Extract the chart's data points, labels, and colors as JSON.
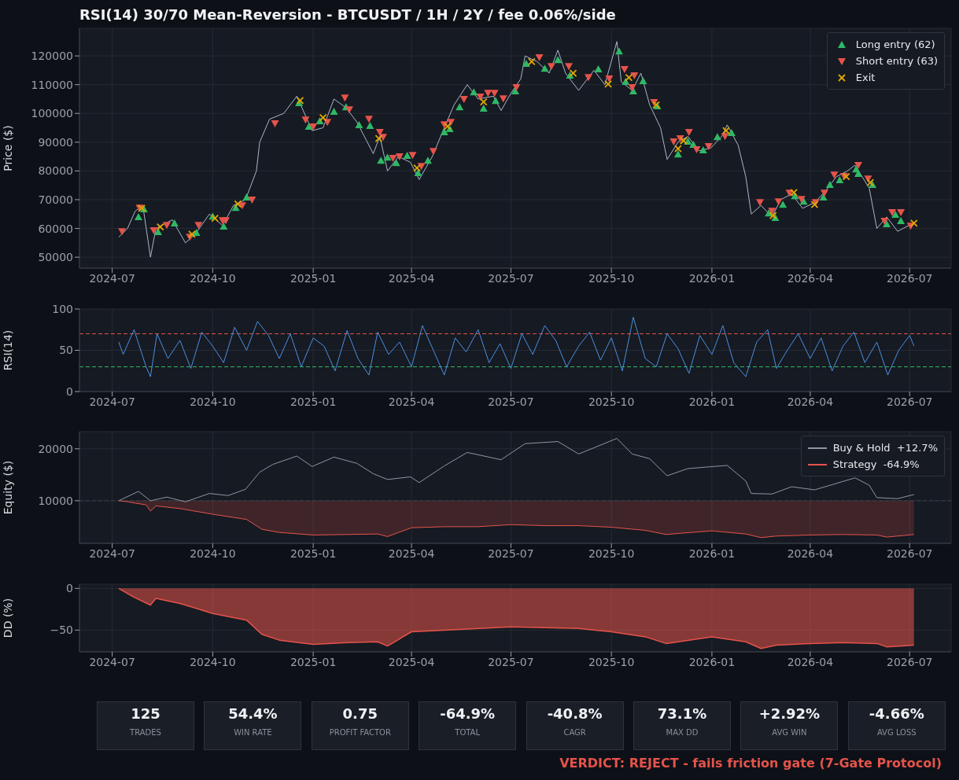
{
  "chart_data": [
    {
      "type": "line",
      "title": "RSI(14) 30/70 Mean-Reversion - BTCUSDT / 1H / 2Y / fee 0.06%/side",
      "ylabel": "Price ($)",
      "xlim": [
        "2024-06-01",
        "2026-08-08"
      ],
      "xticks": [
        {
          "value": "2024-07-01",
          "label": "2024-07"
        },
        {
          "value": "2024-10-01",
          "label": "2024-10"
        },
        {
          "value": "2025-01-01",
          "label": "2025-01"
        },
        {
          "value": "2025-04-01",
          "label": "2025-04"
        },
        {
          "value": "2025-07-01",
          "label": "2025-07"
        },
        {
          "value": "2025-10-01",
          "label": "2025-10"
        },
        {
          "value": "2026-01-01",
          "label": "2026-01"
        },
        {
          "value": "2026-04-01",
          "label": "2026-04"
        },
        {
          "value": "2026-07-01",
          "label": "2026-07"
        }
      ],
      "ylim": [
        46200,
        129600
      ],
      "yticks": [
        50000,
        60000,
        70000,
        80000,
        90000,
        100000,
        110000,
        120000
      ],
      "grid": true,
      "legend": "top right",
      "series": [
        {
          "type": "line",
          "color": "#a9b8cc",
          "x": [
            "2024-07-07",
            "2024-07-15",
            "2024-07-22",
            "2024-07-29",
            "2024-08-05",
            "2024-08-10",
            "2024-08-25",
            "2024-09-06",
            "2024-09-15",
            "2024-09-28",
            "2024-10-10",
            "2024-10-20",
            "2024-10-31",
            "2024-11-10",
            "2024-11-13",
            "2024-11-22",
            "2024-12-05",
            "2024-12-17",
            "2024-12-31",
            "2025-01-10",
            "2025-01-20",
            "2025-01-31",
            "2025-02-10",
            "2025-02-25",
            "2025-03-03",
            "2025-03-10",
            "2025-03-20",
            "2025-03-31",
            "2025-04-08",
            "2025-04-20",
            "2025-05-01",
            "2025-05-10",
            "2025-05-22",
            "2025-06-01",
            "2025-06-15",
            "2025-06-22",
            "2025-07-01",
            "2025-07-10",
            "2025-07-14",
            "2025-07-25",
            "2025-08-05",
            "2025-08-13",
            "2025-08-20",
            "2025-09-01",
            "2025-09-15",
            "2025-09-25",
            "2025-10-06",
            "2025-10-10",
            "2025-10-20",
            "2025-10-28",
            "2025-11-05",
            "2025-11-15",
            "2025-11-21",
            "2025-12-01",
            "2025-12-10",
            "2025-12-20",
            "2025-12-31",
            "2026-01-10",
            "2026-01-15",
            "2026-01-25",
            "2026-02-01",
            "2026-02-06",
            "2026-02-15",
            "2026-02-25",
            "2026-03-05",
            "2026-03-15",
            "2026-03-25",
            "2026-04-05",
            "2026-04-15",
            "2026-04-25",
            "2026-05-05",
            "2026-05-12",
            "2026-05-25",
            "2026-06-01",
            "2026-06-10",
            "2026-06-20",
            "2026-07-05"
          ],
          "values": [
            57000,
            60000,
            66000,
            68000,
            50000,
            60000,
            63000,
            55000,
            58000,
            65000,
            61000,
            68000,
            70000,
            80000,
            90000,
            98000,
            100000,
            106000,
            94000,
            95000,
            105000,
            102000,
            97000,
            86000,
            92000,
            80000,
            85000,
            83000,
            77000,
            85000,
            95000,
            103000,
            110000,
            105000,
            106000,
            101000,
            107000,
            112000,
            120000,
            118000,
            114000,
            122000,
            114000,
            108000,
            115000,
            110000,
            125000,
            111000,
            108000,
            114000,
            103000,
            95000,
            84000,
            90000,
            92000,
            87000,
            88000,
            92000,
            96000,
            89000,
            78000,
            65000,
            68000,
            64000,
            70000,
            72000,
            67000,
            69000,
            73000,
            78000,
            80000,
            82000,
            74000,
            60000,
            64000,
            59000,
            62000
          ]
        },
        {
          "type": "scatter",
          "name": "Long entry (62)",
          "color": "#2fb866",
          "marker": "triangle",
          "x": [
            "2024-07-25",
            "2024-07-30",
            "2024-08-12",
            "2024-08-27",
            "2024-09-16",
            "2024-10-01",
            "2024-10-11",
            "2024-10-22",
            "2024-11-01",
            "2024-12-19",
            "2024-12-28",
            "2025-01-07",
            "2025-01-20",
            "2025-01-31",
            "2025-02-12",
            "2025-02-22",
            "2025-03-04",
            "2025-03-10",
            "2025-03-18",
            "2025-03-28",
            "2025-04-07",
            "2025-04-16",
            "2025-05-01",
            "2025-05-06",
            "2025-05-15",
            "2025-05-28",
            "2025-06-06",
            "2025-06-17",
            "2025-07-05",
            "2025-07-15",
            "2025-08-01",
            "2025-08-13",
            "2025-08-24",
            "2025-09-19",
            "2025-10-08",
            "2025-10-14",
            "2025-10-21",
            "2025-10-30",
            "2025-11-12",
            "2025-12-01",
            "2025-12-10",
            "2025-12-15",
            "2025-12-24",
            "2026-01-06",
            "2026-01-19",
            "2026-02-22",
            "2026-02-28",
            "2026-03-07",
            "2026-03-18",
            "2026-03-26",
            "2026-04-13",
            "2026-04-19",
            "2026-04-28",
            "2026-05-13",
            "2026-05-15",
            "2026-05-28",
            "2026-06-10",
            "2026-06-18",
            "2026-06-23"
          ],
          "values": [
            64000,
            66700,
            58800,
            61800,
            58500,
            64200,
            60700,
            67200,
            70800,
            103600,
            95400,
            97300,
            100600,
            102200,
            96000,
            95700,
            83600,
            84700,
            82800,
            85300,
            79300,
            83600,
            93500,
            94600,
            102200,
            107400,
            101700,
            104400,
            107700,
            117300,
            115600,
            118600,
            113200,
            115400,
            121600,
            111000,
            107700,
            111300,
            102500,
            85800,
            90200,
            89100,
            87200,
            91800,
            93200,
            65300,
            63700,
            68300,
            71300,
            69400,
            70800,
            75200,
            76800,
            80600,
            79000,
            75200,
            61500,
            64800,
            62600
          ]
        },
        {
          "type": "scatter",
          "name": "Short entry (63)",
          "color": "#e5534b",
          "marker": "triangle-down",
          "x": [
            "2024-07-10",
            "2024-07-26",
            "2024-08-08",
            "2024-08-20",
            "2024-09-10",
            "2024-09-18",
            "2024-10-10",
            "2024-10-13",
            "2024-10-28",
            "2024-11-06",
            "2024-11-27",
            "2024-12-25",
            "2025-01-01",
            "2025-01-14",
            "2025-01-30",
            "2025-02-03",
            "2025-02-21",
            "2025-03-03",
            "2025-03-06",
            "2025-03-15",
            "2025-03-21",
            "2025-04-02",
            "2025-04-10",
            "2025-04-21",
            "2025-05-01",
            "2025-05-07",
            "2025-05-19",
            "2025-06-03",
            "2025-06-10",
            "2025-06-16",
            "2025-06-24",
            "2025-07-06",
            "2025-07-27",
            "2025-08-07",
            "2025-08-23",
            "2025-09-10",
            "2025-09-29",
            "2025-10-13",
            "2025-10-20",
            "2025-10-22",
            "2025-11-09",
            "2025-11-27",
            "2025-12-03",
            "2025-12-11",
            "2025-12-18",
            "2025-12-29",
            "2026-01-13",
            "2026-02-14",
            "2026-02-25",
            "2026-03-03",
            "2026-03-13",
            "2026-03-24",
            "2026-04-06",
            "2026-04-14",
            "2026-04-23",
            "2026-05-02",
            "2026-05-15",
            "2026-05-24",
            "2026-06-08",
            "2026-06-15",
            "2026-06-23",
            "2026-07-02"
          ],
          "values": [
            59000,
            67200,
            59300,
            61200,
            57100,
            61200,
            62800,
            62800,
            68000,
            70000,
            96500,
            97800,
            95400,
            97000,
            105500,
            101400,
            98100,
            93500,
            91800,
            84500,
            85000,
            85500,
            81700,
            86900,
            96200,
            97000,
            105000,
            105800,
            107100,
            107100,
            105200,
            109100,
            119500,
            116400,
            116400,
            112600,
            112100,
            115400,
            109100,
            113200,
            103900,
            90200,
            91300,
            93500,
            87500,
            88600,
            92100,
            69100,
            66100,
            69400,
            72400,
            70200,
            69100,
            72400,
            78700,
            78200,
            82000,
            77300,
            62600,
            65600,
            65600,
            60900
          ]
        },
        {
          "type": "scatter",
          "name": "Exit",
          "color": "#e0a800",
          "marker": "cross",
          "x": [
            "2024-07-28",
            "2024-08-14",
            "2024-09-12",
            "2024-10-03",
            "2024-10-24",
            "2024-12-20",
            "2025-01-10",
            "2025-03-02",
            "2025-04-06",
            "2025-05-04",
            "2025-06-06",
            "2025-07-20",
            "2025-08-27",
            "2025-09-28",
            "2025-10-17",
            "2025-11-11",
            "2025-12-01",
            "2025-12-06",
            "2026-01-14",
            "2026-02-26",
            "2026-03-17",
            "2026-04-05",
            "2026-05-04",
            "2026-05-26",
            "2026-07-05"
          ],
          "values": [
            67000,
            60500,
            58000,
            63500,
            68500,
            104500,
            98500,
            91300,
            81000,
            95500,
            104000,
            118000,
            114000,
            110200,
            112500,
            103000,
            87700,
            90500,
            94000,
            64500,
            72500,
            68300,
            78000,
            76000,
            61800
          ]
        }
      ]
    },
    {
      "type": "line",
      "ylabel": "RSI(14)",
      "xlim": [
        "2024-06-01",
        "2026-08-08"
      ],
      "xticks": [
        {
          "value": "2024-07-01",
          "label": "2024-07"
        },
        {
          "value": "2024-10-01",
          "label": "2024-10"
        },
        {
          "value": "2025-01-01",
          "label": "2025-01"
        },
        {
          "value": "2025-04-01",
          "label": "2025-04"
        },
        {
          "value": "2025-07-01",
          "label": "2025-07"
        },
        {
          "value": "2025-10-01",
          "label": "2025-10"
        },
        {
          "value": "2026-01-01",
          "label": "2026-01"
        },
        {
          "value": "2026-04-01",
          "label": "2026-04"
        },
        {
          "value": "2026-07-01",
          "label": "2026-07"
        }
      ],
      "ylim": [
        0,
        100
      ],
      "yticks": [
        0,
        50,
        100
      ],
      "grid": true,
      "ref_lines": [
        {
          "axis": "y",
          "value": 70,
          "color": "#e5534b",
          "line_style": "dashed"
        },
        {
          "axis": "y",
          "value": 30,
          "color": "#2fb866",
          "line_style": "dashed"
        }
      ],
      "series": [
        {
          "type": "line",
          "color": "#4a90e2",
          "x": [
            "2024-07-07",
            "2024-07-11",
            "2024-07-21",
            "2024-08-01",
            "2024-08-05",
            "2024-08-11",
            "2024-08-21",
            "2024-09-01",
            "2024-09-11",
            "2024-09-21",
            "2024-10-01",
            "2024-10-11",
            "2024-10-21",
            "2024-11-01",
            "2024-11-11",
            "2024-11-21",
            "2024-12-01",
            "2024-12-11",
            "2024-12-21",
            "2025-01-01",
            "2025-01-11",
            "2025-01-21",
            "2025-02-01",
            "2025-02-11",
            "2025-02-21",
            "2025-03-01",
            "2025-03-11",
            "2025-03-21",
            "2025-04-01",
            "2025-04-11",
            "2025-04-21",
            "2025-05-01",
            "2025-05-11",
            "2025-05-21",
            "2025-06-01",
            "2025-06-11",
            "2025-06-21",
            "2025-07-01",
            "2025-07-11",
            "2025-07-21",
            "2025-08-01",
            "2025-08-11",
            "2025-08-21",
            "2025-09-01",
            "2025-09-11",
            "2025-09-21",
            "2025-10-01",
            "2025-10-11",
            "2025-10-21",
            "2025-11-01",
            "2025-11-11",
            "2025-11-21",
            "2025-12-01",
            "2025-12-11",
            "2025-12-21",
            "2026-01-01",
            "2026-01-11",
            "2026-01-21",
            "2026-02-01",
            "2026-02-11",
            "2026-02-21",
            "2026-03-01",
            "2026-03-11",
            "2026-03-21",
            "2026-04-01",
            "2026-04-11",
            "2026-04-21",
            "2026-05-01",
            "2026-05-11",
            "2026-05-21",
            "2026-06-01",
            "2026-06-11",
            "2026-06-21",
            "2026-07-01",
            "2026-07-05"
          ],
          "values": [
            60,
            45,
            75,
            30,
            18,
            70,
            40,
            62,
            28,
            72,
            55,
            35,
            78,
            50,
            85,
            68,
            40,
            70,
            30,
            65,
            55,
            25,
            74,
            40,
            20,
            72,
            45,
            60,
            30,
            80,
            50,
            20,
            65,
            48,
            75,
            35,
            58,
            28,
            70,
            45,
            80,
            62,
            30,
            55,
            72,
            38,
            65,
            25,
            90,
            40,
            30,
            70,
            52,
            22,
            68,
            45,
            80,
            35,
            18,
            60,
            75,
            28,
            50,
            70,
            40,
            65,
            25,
            55,
            72,
            35,
            60,
            20,
            50,
            68,
            55
          ]
        }
      ]
    },
    {
      "type": "line",
      "ylabel": "Equity ($)",
      "xlim": [
        "2024-06-01",
        "2026-08-08"
      ],
      "xticks": [
        {
          "value": "2024-07-01",
          "label": "2024-07"
        },
        {
          "value": "2024-10-01",
          "label": "2024-10"
        },
        {
          "value": "2025-01-01",
          "label": "2025-01"
        },
        {
          "value": "2025-04-01",
          "label": "2025-04"
        },
        {
          "value": "2025-07-01",
          "label": "2025-07"
        },
        {
          "value": "2025-10-01",
          "label": "2025-10"
        },
        {
          "value": "2026-01-01",
          "label": "2026-01"
        },
        {
          "value": "2026-04-01",
          "label": "2026-04"
        },
        {
          "value": "2026-07-01",
          "label": "2026-07"
        }
      ],
      "ylim": [
        1800,
        23300
      ],
      "yticks": [
        10000,
        20000
      ],
      "grid": true,
      "legend": "top right",
      "ref_lines": [
        {
          "axis": "y",
          "value": 10000,
          "color": "#3a404c",
          "line_style": "dashed"
        }
      ],
      "series": [
        {
          "type": "line",
          "name": "Buy & Hold  +12.7%",
          "color": "#8f96a0",
          "x": [
            "2024-07-07",
            "2024-07-25",
            "2024-08-05",
            "2024-08-20",
            "2024-09-06",
            "2024-09-28",
            "2024-10-15",
            "2024-10-31",
            "2024-11-13",
            "2024-11-25",
            "2024-12-17",
            "2024-12-31",
            "2025-01-20",
            "2025-02-10",
            "2025-02-25",
            "2025-03-10",
            "2025-03-31",
            "2025-04-08",
            "2025-05-01",
            "2025-05-22",
            "2025-06-22",
            "2025-07-14",
            "2025-08-13",
            "2025-09-01",
            "2025-09-15",
            "2025-10-06",
            "2025-10-20",
            "2025-11-05",
            "2025-11-21",
            "2025-12-10",
            "2026-01-15",
            "2026-02-01",
            "2026-02-06",
            "2026-02-25",
            "2026-03-15",
            "2026-04-05",
            "2026-05-12",
            "2026-05-25",
            "2026-06-01",
            "2026-06-20",
            "2026-07-05"
          ],
          "values": [
            10000,
            11800,
            10000,
            10700,
            9800,
            11400,
            11000,
            12200,
            15500,
            17000,
            18600,
            16600,
            18400,
            17200,
            15200,
            14100,
            14600,
            13500,
            16700,
            19300,
            17900,
            21000,
            21400,
            19000,
            20200,
            22000,
            19000,
            18100,
            14800,
            16200,
            16800,
            13800,
            11400,
            11300,
            12700,
            12100,
            14400,
            13000,
            10600,
            10400,
            11200
          ]
        },
        {
          "type": "line",
          "name": "Strategy  -64.9%",
          "color": "#e5534b",
          "lower": [
            10000,
            9800,
            9200,
            8000,
            9000,
            8500,
            7400,
            6400,
            4500,
            3900,
            3400,
            3500,
            3600,
            3100,
            4800,
            5000,
            5000,
            5400,
            5200,
            5200,
            4900,
            4300,
            3500,
            3700,
            4200,
            3600,
            2900,
            3200,
            3400,
            3500,
            3400,
            3000,
            3500
          ],
          "upper": [
            10000,
            10000,
            10000,
            10000,
            10000,
            10000,
            10000,
            10000,
            10000,
            10000,
            10000,
            10000,
            10000,
            10000,
            10000,
            10000,
            10000,
            10000,
            10000,
            10000,
            10000,
            10000,
            10000,
            10000,
            10000,
            10000,
            10000,
            10000,
            10000,
            10000,
            10000,
            10000,
            10000
          ],
          "x": [
            "2024-07-07",
            "2024-07-15",
            "2024-08-01",
            "2024-08-05",
            "2024-08-10",
            "2024-09-01",
            "2024-10-01",
            "2024-11-01",
            "2024-11-15",
            "2024-12-01",
            "2025-01-01",
            "2025-02-01",
            "2025-03-01",
            "2025-03-10",
            "2025-04-01",
            "2025-05-01",
            "2025-06-01",
            "2025-07-01",
            "2025-08-01",
            "2025-09-01",
            "2025-10-01",
            "2025-11-01",
            "2025-11-20",
            "2025-12-01",
            "2026-01-01",
            "2026-02-01",
            "2026-02-15",
            "2026-03-01",
            "2026-04-01",
            "2026-05-01",
            "2026-06-01",
            "2026-06-10",
            "2026-07-05"
          ],
          "values": [
            10000,
            9800,
            9200,
            8000,
            9000,
            8500,
            7400,
            6400,
            4500,
            3900,
            3400,
            3500,
            3600,
            3100,
            4800,
            5000,
            5000,
            5400,
            5200,
            5200,
            4900,
            4300,
            3500,
            3700,
            4200,
            3600,
            2900,
            3200,
            3400,
            3500,
            3400,
            3000,
            3500
          ]
        }
      ]
    },
    {
      "type": "area",
      "ylabel": "DD (%)",
      "xlim": [
        "2024-06-01",
        "2026-08-08"
      ],
      "xticks": [
        {
          "value": "2024-07-01",
          "label": "2024-07"
        },
        {
          "value": "2024-10-01",
          "label": "2024-10"
        },
        {
          "value": "2025-01-01",
          "label": "2025-01"
        },
        {
          "value": "2025-04-01",
          "label": "2025-04"
        },
        {
          "value": "2025-07-01",
          "label": "2025-07"
        },
        {
          "value": "2025-10-01",
          "label": "2025-10"
        },
        {
          "value": "2026-01-01",
          "label": "2026-01"
        },
        {
          "value": "2026-04-01",
          "label": "2026-04"
        },
        {
          "value": "2026-07-01",
          "label": "2026-07"
        }
      ],
      "ylim": [
        -76,
        5
      ],
      "yticks": [
        {
          "value": -50,
          "label": "−50"
        },
        0
      ],
      "grid": true,
      "series": [
        {
          "type": "area",
          "color": "#e5534b",
          "x": [
            "2024-07-07",
            "2024-07-20",
            "2024-08-05",
            "2024-08-10",
            "2024-09-01",
            "2024-10-01",
            "2024-11-01",
            "2024-11-15",
            "2024-12-01",
            "2025-01-01",
            "2025-02-01",
            "2025-03-01",
            "2025-03-10",
            "2025-04-01",
            "2025-05-01",
            "2025-07-01",
            "2025-09-01",
            "2025-10-01",
            "2025-11-01",
            "2025-11-20",
            "2026-01-01",
            "2026-02-01",
            "2026-02-15",
            "2026-03-01",
            "2026-04-01",
            "2026-05-01",
            "2026-06-01",
            "2026-06-10",
            "2026-07-05"
          ],
          "values": [
            0,
            -10,
            -20,
            -12,
            -18,
            -30,
            -38,
            -55,
            -62,
            -67,
            -65,
            -64,
            -69,
            -52,
            -50,
            -46,
            -48,
            -52,
            -58,
            -66,
            -58,
            -64,
            -72,
            -68,
            -66,
            -65,
            -66,
            -70,
            -68
          ]
        }
      ]
    },
    {
      "type": "other",
      "categories": [
        "TRADES",
        "WIN RATE",
        "PROFIT FACTOR",
        "TOTAL",
        "CAGR",
        "MAX DD",
        "AVG WIN",
        "AVG LOSS"
      ],
      "value_labels": [
        "125",
        "54.4%",
        "0.75",
        "-64.9%",
        "-40.8%",
        "73.1%",
        "+2.92%",
        "-4.66%"
      ],
      "annotations": [
        "VERDICT: REJECT - fails friction gate (7-Gate Protocol)"
      ]
    }
  ]
}
